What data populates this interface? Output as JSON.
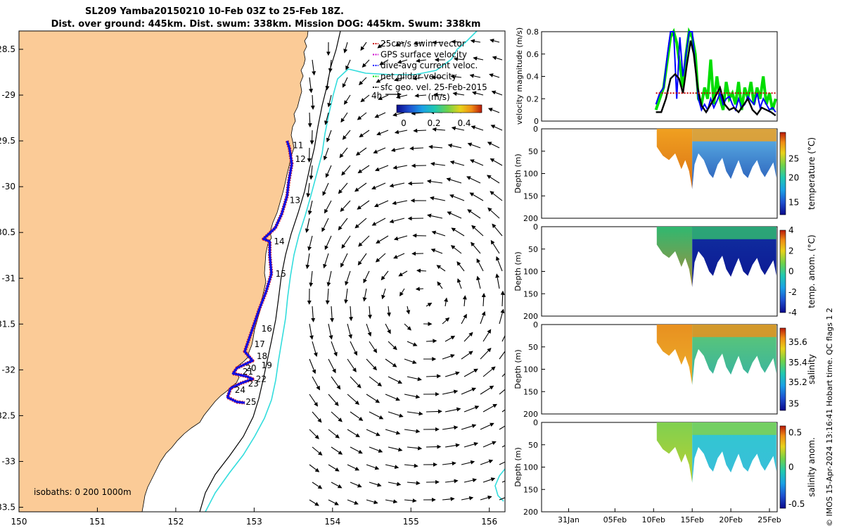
{
  "header": {
    "line1": "SL209 Yamba20150210 10-Feb 03Z to 25-Feb 18Z.",
    "line2": "Dist. over ground: 445km. Dist. swum: 338km. Mission DOG: 445km. Swum: 338km"
  },
  "colors": {
    "land": "#fbcb97",
    "isobath200": "#000000",
    "isobath1000": "#33dddd",
    "track_red": "#e81818",
    "track_blue": "#1010e0",
    "net_green": "#22ee22"
  },
  "legend": {
    "items": [
      {
        "label": "25cm/s swim vector",
        "color": "#cc0000",
        "icon": "red-dash-icon"
      },
      {
        "label": "GPS surface velocity",
        "color": "#cc00cc",
        "icon": "magenta-dash-icon"
      },
      {
        "label": "dive-avg current veloc.",
        "color": "#0000ff",
        "icon": "blue-dash-icon"
      },
      {
        "label": "net glider velocity",
        "color": "#00dd00",
        "icon": "green-dash-icon"
      },
      {
        "label": "sfc geo. vel. 25-Feb-2015",
        "color": "#000000",
        "icon": "black-dash-icon"
      }
    ],
    "ref_arrow_label": "4h",
    "colorbar_title": "(m/s)",
    "colorbar_ticks": [
      "0",
      "0.2",
      "0.4"
    ]
  },
  "map": {
    "lon_ticks": [
      "150",
      "151",
      "152",
      "153",
      "154",
      "155",
      "156"
    ],
    "lat_ticks": [
      "28.5",
      "-29",
      "29.5",
      "-30",
      "30.5",
      "-31",
      "31.5",
      "-32",
      "32.5",
      "-33",
      "33.5"
    ],
    "isobaths_label": "isobaths: 0   200  1000m",
    "day_labels": [
      "11",
      "12",
      "13",
      "14",
      "15",
      "16",
      "17",
      "18",
      "19",
      "20",
      "21",
      "22",
      "23",
      "24",
      "25"
    ]
  },
  "panels": {
    "p1_ylabel": "velocity magnitude (m/s)",
    "p1_ticks": [
      "0.8",
      "0.6",
      "0.4",
      "0.2",
      "0"
    ],
    "depth_label": "Depth (m)",
    "depth_ticks": [
      "0",
      "50",
      "100",
      "150",
      "200"
    ],
    "date_ticks": [
      "31Jan",
      "05Feb",
      "10Feb",
      "15Feb",
      "20Feb",
      "25Feb"
    ],
    "cb_temp_label": "temperature (°C)",
    "cb_temp_ticks": [
      "25",
      "20",
      "15"
    ],
    "cb_anom_label": "temp. anom. (°C)",
    "cb_anom_ticks": [
      "4",
      "2",
      "0",
      "-2",
      "-4"
    ],
    "cb_sal_label": "salinity",
    "cb_sal_ticks": [
      "35.6",
      "35.4",
      "35.2",
      "35"
    ],
    "cb_salanom_label": "salinity anom.",
    "cb_salanom_ticks": [
      "0.5",
      "0",
      "-0.5"
    ],
    "credit": "© IMOS 15-Apr-2024 13:16:41 Hobart time. QC flags 1  2"
  },
  "chart_data": [
    {
      "type": "scatter",
      "title": "SL209 Yamba20150210 10-Feb 03Z to 25-Feb 18Z.",
      "xlim": [
        150,
        156.2
      ],
      "ylim": [
        -33.55,
        -28.3
      ],
      "track_days": [
        {
          "day": "11",
          "lon": 153.42,
          "lat": -29.55
        },
        {
          "day": "12",
          "lon": 153.45,
          "lat": -29.7
        },
        {
          "day": "13",
          "lon": 153.38,
          "lat": -30.15
        },
        {
          "day": "14",
          "lon": 153.18,
          "lat": -30.6
        },
        {
          "day": "15",
          "lon": 153.2,
          "lat": -30.95
        },
        {
          "day": "16",
          "lon": 153.02,
          "lat": -31.55
        },
        {
          "day": "17",
          "lon": 152.93,
          "lat": -31.72
        },
        {
          "day": "18",
          "lon": 152.96,
          "lat": -31.85
        },
        {
          "day": "19",
          "lon": 153.02,
          "lat": -31.95
        },
        {
          "day": "20",
          "lon": 152.82,
          "lat": -31.98
        },
        {
          "day": "21",
          "lon": 152.78,
          "lat": -32.02
        },
        {
          "day": "22",
          "lon": 152.95,
          "lat": -32.1
        },
        {
          "day": "23",
          "lon": 152.85,
          "lat": -32.15
        },
        {
          "day": "24",
          "lon": 152.68,
          "lat": -32.22
        },
        {
          "day": "25",
          "lon": 152.82,
          "lat": -32.35
        }
      ]
    },
    {
      "type": "line",
      "ylabel": "velocity magnitude (m/s)",
      "ylim": [
        0,
        0.8
      ],
      "x_unit": "day of Feb 2015",
      "xlim": [
        -4.5,
        26
      ],
      "series": [
        {
          "name": "net glider velocity",
          "color": "#00dd00",
          "x": [
            10.3,
            10.8,
            11.3,
            11.8,
            12.2,
            12.6,
            13.0,
            13.4,
            13.8,
            14.2,
            14.6,
            15.0,
            15.4,
            15.8,
            16.2,
            16.6,
            17.0,
            17.4,
            17.8,
            18.2,
            18.6,
            19.0,
            19.4,
            19.8,
            20.2,
            20.6,
            21.0,
            21.4,
            21.8,
            22.2,
            22.6,
            23.0,
            23.4,
            23.8,
            24.2,
            24.6,
            25.0,
            25.4,
            25.8
          ],
          "y": [
            0.1,
            0.2,
            0.3,
            0.55,
            0.75,
            0.8,
            0.7,
            0.5,
            0.3,
            0.6,
            0.8,
            0.75,
            0.6,
            0.2,
            0.15,
            0.3,
            0.2,
            0.55,
            0.15,
            0.4,
            0.2,
            0.1,
            0.35,
            0.2,
            0.25,
            0.15,
            0.35,
            0.1,
            0.3,
            0.2,
            0.35,
            0.15,
            0.3,
            0.2,
            0.4,
            0.15,
            0.25,
            0.1,
            0.2
          ]
        },
        {
          "name": "dive-avg current veloc.",
          "color": "#0000ff",
          "x": [
            10.3,
            10.8,
            11.3,
            11.8,
            12.2,
            12.6,
            13.0,
            13.4,
            13.8,
            14.2,
            14.6,
            15.0,
            15.4,
            15.8,
            16.2,
            16.6,
            17.0,
            17.4,
            17.8,
            18.2,
            18.6,
            19.0,
            19.4,
            19.8,
            20.2,
            20.6,
            21.0,
            21.4,
            21.8,
            22.2,
            22.6,
            23.0,
            23.4,
            23.8,
            24.2,
            24.6,
            25.0,
            25.4,
            25.8
          ],
          "y": [
            0.15,
            0.25,
            0.3,
            0.6,
            0.8,
            0.8,
            0.2,
            0.75,
            0.4,
            0.6,
            0.8,
            0.8,
            0.5,
            0.2,
            0.1,
            0.15,
            0.1,
            0.2,
            0.12,
            0.18,
            0.25,
            0.15,
            0.2,
            0.22,
            0.15,
            0.1,
            0.2,
            0.12,
            0.15,
            0.22,
            0.18,
            0.15,
            0.25,
            0.12,
            0.2,
            0.15,
            0.1,
            0.12,
            0.08
          ]
        },
        {
          "name": "GPS surface velocity",
          "color": "#000000",
          "x": [
            10.3,
            11.0,
            11.6,
            12.2,
            12.8,
            13.3,
            13.8,
            14.3,
            14.8,
            15.2,
            15.7,
            16.2,
            16.8,
            17.4,
            18.0,
            18.6,
            19.2,
            19.8,
            20.4,
            21.0,
            21.6,
            22.2,
            22.8,
            23.4,
            24.0,
            24.6,
            25.2,
            25.8
          ],
          "y": [
            0.08,
            0.08,
            0.2,
            0.38,
            0.42,
            0.38,
            0.25,
            0.5,
            0.72,
            0.6,
            0.3,
            0.14,
            0.08,
            0.15,
            0.22,
            0.3,
            0.15,
            0.1,
            0.12,
            0.08,
            0.14,
            0.2,
            0.1,
            0.06,
            0.12,
            0.1,
            0.08,
            0.05
          ]
        },
        {
          "name": "25cm/s swim vector",
          "color": "#cc0000",
          "x": [
            10.3,
            25.8
          ],
          "y": [
            0.25,
            0.25
          ]
        }
      ]
    }
  ]
}
